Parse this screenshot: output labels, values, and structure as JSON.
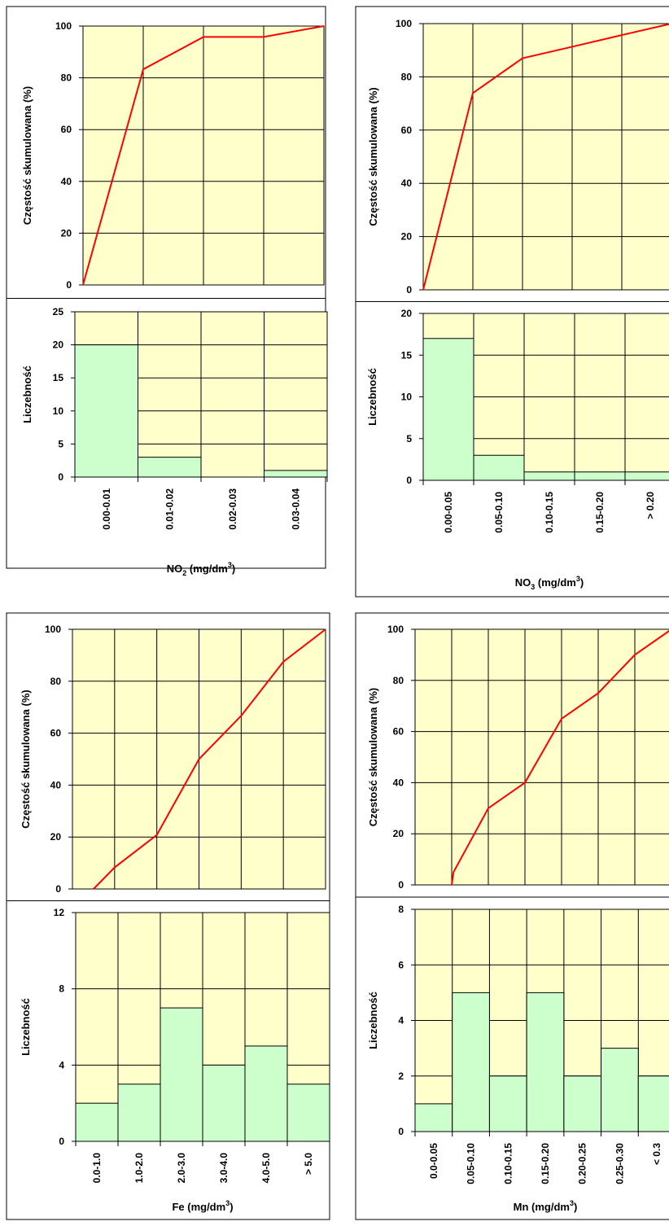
{
  "colors": {
    "plot_background": "#ffffcc",
    "bar_fill": "#ccffcc",
    "cumulative_line": "#ff0000",
    "grid": "#000000"
  },
  "chart_data": [
    {
      "id": "no2",
      "type": "bar",
      "xlabel": {
        "main": "NO",
        "sub": "2",
        "unit": " (mg/dm",
        "sup": "3",
        "close": ")"
      },
      "categories": [
        "0.00-0.01",
        "0.01-0.02",
        "0.02-0.03",
        "0.03-0.04"
      ],
      "histogram": {
        "ylabel": "Liczebność",
        "values": [
          20,
          3,
          0,
          1
        ],
        "ylim": [
          0,
          25
        ],
        "yticks": [
          0,
          5,
          10,
          15,
          20,
          25
        ]
      },
      "cumulative": {
        "ylabel": "Częstość skumulowana (%)",
        "x": [
          0,
          1,
          2,
          3,
          4
        ],
        "values": [
          0,
          83.3,
          95.8,
          95.8,
          100
        ],
        "ylim": [
          0,
          100
        ],
        "yticks": [
          0,
          20,
          40,
          60,
          80,
          100
        ]
      }
    },
    {
      "id": "no3",
      "type": "bar",
      "xlabel": {
        "main": "NO",
        "sub": "3",
        "unit": " (mg/dm",
        "sup": "3",
        "close": ")"
      },
      "categories": [
        "0.00-0.05",
        "0.05-0.10",
        "0.10-0.15",
        "0.15-0.20",
        "> 0.20"
      ],
      "histogram": {
        "ylabel": "Liczebność",
        "values": [
          17,
          3,
          1,
          1,
          1
        ],
        "ylim": [
          0,
          20
        ],
        "yticks": [
          0,
          5,
          10,
          15,
          20
        ]
      },
      "cumulative": {
        "ylabel": "Częstość skumulowana (%)",
        "x": [
          0,
          1,
          2,
          3,
          4,
          5
        ],
        "values": [
          0,
          73.9,
          87.0,
          91.3,
          95.7,
          100
        ],
        "ylim": [
          0,
          100
        ],
        "yticks": [
          0,
          20,
          40,
          60,
          80,
          100
        ]
      }
    },
    {
      "id": "fe",
      "type": "bar",
      "xlabel": {
        "main": "Fe",
        "sub": "",
        "unit": " (mg/dm",
        "sup": "3",
        "close": ")"
      },
      "categories": [
        "0.0-1.0",
        "1.0-2.0",
        "2.0-3.0",
        "3.0-4.0",
        "4.0-5.0",
        "> 5.0"
      ],
      "histogram": {
        "ylabel": "Liczebność",
        "values": [
          2,
          3,
          7,
          4,
          5,
          3
        ],
        "ylim": [
          0,
          12
        ],
        "yticks": [
          0,
          4,
          8,
          12
        ]
      },
      "cumulative": {
        "ylabel": "Częstość skumulowana (%)",
        "x": [
          0.5,
          1,
          2,
          3,
          4,
          5,
          6
        ],
        "values": [
          0,
          8.3,
          20.8,
          50,
          66.7,
          87.5,
          100
        ],
        "ylim": [
          0,
          100
        ],
        "yticks": [
          0,
          20,
          40,
          60,
          80,
          100
        ]
      }
    },
    {
      "id": "mn",
      "type": "bar",
      "xlabel": {
        "main": "Mn",
        "sub": "",
        "unit": " (mg/dm",
        "sup": "3",
        "close": ")"
      },
      "categories": [
        "0.0-0.05",
        "0.05-0.10",
        "0.10-0.15",
        "0.15-0.20",
        "0.20-0.25",
        "0.25-0.30",
        "< 0.3"
      ],
      "histogram": {
        "ylabel": "Liczebność",
        "values": [
          1,
          5,
          2,
          5,
          2,
          3,
          2
        ],
        "ylim": [
          0,
          8
        ],
        "yticks": [
          0,
          2,
          4,
          6,
          8
        ]
      },
      "cumulative": {
        "ylabel": "Częstość skumulowana (%)",
        "x": [
          1,
          1.05,
          2,
          3,
          4,
          5,
          6,
          7
        ],
        "values": [
          0,
          5,
          30,
          40,
          65,
          75,
          90,
          100
        ],
        "ylim": [
          0,
          100
        ],
        "yticks": [
          0,
          20,
          40,
          60,
          80,
          100
        ]
      }
    }
  ]
}
